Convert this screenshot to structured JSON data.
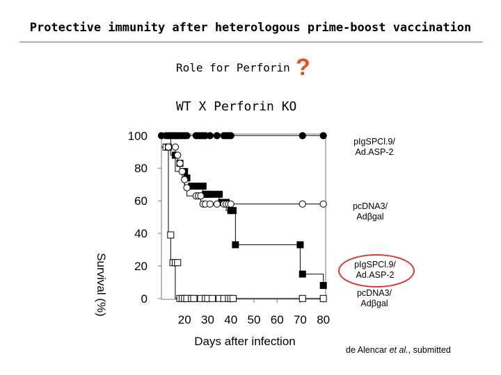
{
  "slide": {
    "title": "Protective immunity after heterologous prime-boost vaccination",
    "subtitle": "Role for Perforin",
    "question_mark": "?",
    "groups_label": "WT  X  Perforin KO",
    "citation_pre": "de Alencar ",
    "citation_italic": "et al.",
    "citation_post": ", submitted",
    "highlight_color": "#d9342b"
  },
  "legend": [
    {
      "line1": "pIgSPCl.9/",
      "line2": "Ad.ASP-2"
    },
    {
      "line1": "pcDNA3/",
      "line2": "Adβgal"
    },
    {
      "line1": "pIgSPCl.9/",
      "line2": "Ad.ASP-2"
    },
    {
      "line1": "pcDNA3/",
      "line2": "Adβgal"
    }
  ],
  "chart_data": {
    "type": "line",
    "xlabel": "Days after infection",
    "ylabel": "Survival (%)",
    "xlim": [
      10,
      81
    ],
    "ylim": [
      -0.5,
      101
    ],
    "xticks": [
      20,
      30,
      40,
      50,
      60,
      70,
      80
    ],
    "yticks": [
      0,
      20,
      40,
      60,
      80,
      100
    ],
    "series": [
      {
        "marker": "circle-filled",
        "color": "#000000",
        "points": [
          [
            10,
            100
          ],
          [
            12,
            100
          ],
          [
            13,
            100
          ],
          [
            14,
            100
          ],
          [
            15,
            100
          ],
          [
            16,
            100
          ],
          [
            17,
            100
          ],
          [
            18,
            100
          ],
          [
            19,
            100
          ],
          [
            20,
            100
          ],
          [
            21,
            100
          ],
          [
            25,
            100
          ],
          [
            26,
            100
          ],
          [
            27,
            100
          ],
          [
            28,
            100
          ],
          [
            29,
            100
          ],
          [
            31,
            100
          ],
          [
            34,
            100
          ],
          [
            37,
            100
          ],
          [
            38,
            100
          ],
          [
            39,
            100
          ],
          [
            40,
            100
          ],
          [
            71,
            100
          ],
          [
            80,
            100
          ]
        ],
        "steps": [
          [
            10,
            100
          ],
          [
            80,
            100
          ]
        ]
      },
      {
        "marker": "circle-open",
        "color": "#000000",
        "points": [
          [
            13,
            93
          ],
          [
            16,
            93
          ],
          [
            17,
            88
          ],
          [
            18,
            83
          ],
          [
            19,
            78
          ],
          [
            20,
            73
          ],
          [
            21,
            68
          ],
          [
            25,
            63
          ],
          [
            26,
            63
          ],
          [
            27,
            63
          ],
          [
            28,
            58
          ],
          [
            29,
            58
          ],
          [
            31,
            58
          ],
          [
            34,
            58
          ],
          [
            37,
            58
          ],
          [
            38,
            58
          ],
          [
            39,
            58
          ],
          [
            40,
            58
          ],
          [
            71,
            58
          ],
          [
            80,
            58
          ]
        ],
        "steps": [
          [
            10,
            93
          ],
          [
            16,
            93
          ],
          [
            16,
            88
          ],
          [
            17,
            88
          ],
          [
            17,
            83
          ],
          [
            18,
            83
          ],
          [
            18,
            78
          ],
          [
            19,
            78
          ],
          [
            19,
            73
          ],
          [
            20,
            73
          ],
          [
            20,
            68
          ],
          [
            21,
            68
          ],
          [
            21,
            63
          ],
          [
            27,
            63
          ],
          [
            27,
            58
          ],
          [
            80,
            58
          ]
        ]
      },
      {
        "marker": "square-filled",
        "color": "#000000",
        "points": [
          [
            16,
            88
          ],
          [
            18,
            83
          ],
          [
            20,
            78
          ],
          [
            21,
            74
          ],
          [
            23,
            69
          ],
          [
            24,
            69
          ],
          [
            26,
            69
          ],
          [
            27,
            69
          ],
          [
            28,
            69
          ],
          [
            29,
            64
          ],
          [
            30,
            64
          ],
          [
            32,
            64
          ],
          [
            35,
            64
          ],
          [
            36,
            59
          ],
          [
            37,
            59
          ],
          [
            38,
            59
          ],
          [
            40,
            54
          ],
          [
            41,
            54
          ],
          [
            42,
            33
          ],
          [
            70,
            33
          ],
          [
            71,
            15
          ],
          [
            80,
            8
          ]
        ],
        "steps": [
          [
            10,
            100
          ],
          [
            14,
            100
          ],
          [
            14,
            88
          ],
          [
            16,
            88
          ],
          [
            16,
            78
          ],
          [
            20,
            78
          ],
          [
            20,
            69
          ],
          [
            28,
            69
          ],
          [
            28,
            64
          ],
          [
            35,
            64
          ],
          [
            35,
            59
          ],
          [
            38,
            59
          ],
          [
            38,
            54
          ],
          [
            42,
            54
          ],
          [
            42,
            33
          ],
          [
            70,
            33
          ],
          [
            70,
            15
          ],
          [
            80,
            15
          ],
          [
            80,
            8
          ]
        ]
      },
      {
        "marker": "square-open",
        "color": "#000000",
        "points": [
          [
            12,
            93
          ],
          [
            13,
            93
          ],
          [
            14,
            39
          ],
          [
            15,
            22
          ],
          [
            16,
            22
          ],
          [
            17,
            22
          ],
          [
            18,
            0
          ],
          [
            19,
            0
          ],
          [
            20,
            0
          ],
          [
            21,
            0
          ],
          [
            23,
            0
          ],
          [
            24,
            0
          ],
          [
            27,
            0
          ],
          [
            29,
            0
          ],
          [
            30,
            0
          ],
          [
            32,
            0
          ],
          [
            35,
            0
          ],
          [
            37,
            0
          ],
          [
            39,
            0
          ],
          [
            40,
            0
          ],
          [
            41,
            0
          ],
          [
            71,
            0
          ],
          [
            80,
            0
          ]
        ],
        "steps": [
          [
            10,
            93
          ],
          [
            13,
            93
          ],
          [
            13,
            39
          ],
          [
            14,
            39
          ],
          [
            14,
            22
          ],
          [
            16,
            22
          ],
          [
            16,
            0
          ],
          [
            80,
            0
          ]
        ]
      }
    ]
  }
}
